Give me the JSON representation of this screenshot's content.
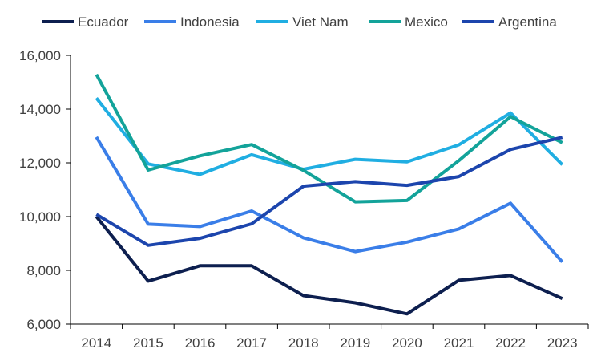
{
  "chart_data": {
    "type": "line",
    "title": "",
    "xlabel": "",
    "ylabel": "",
    "x": [
      "2014",
      "2015",
      "2016",
      "2017",
      "2018",
      "2019",
      "2020",
      "2021",
      "2022",
      "2023"
    ],
    "ylim": [
      6000,
      16000
    ],
    "yticks": [
      6000,
      8000,
      10000,
      12000,
      14000,
      16000
    ],
    "ytick_labels": [
      "6,000",
      "8,000",
      "10,000",
      "12,000",
      "14,000",
      "16,000"
    ],
    "grid": false,
    "legend_position": "top",
    "series": [
      {
        "name": "Ecuador",
        "color": "#0d1f4f",
        "values": [
          10000,
          7600,
          8170,
          8170,
          7060,
          6790,
          6380,
          7630,
          7810,
          6950
        ]
      },
      {
        "name": "Indonesia",
        "color": "#3a7ee8",
        "values": [
          12960,
          9720,
          9630,
          10210,
          9210,
          8700,
          9050,
          9540,
          10500,
          8310
        ]
      },
      {
        "name": "Viet Nam",
        "color": "#20aee2",
        "values": [
          14410,
          11960,
          11570,
          12300,
          11760,
          12130,
          12040,
          12670,
          13860,
          11930
        ]
      },
      {
        "name": "Mexico",
        "color": "#13a39a",
        "values": [
          15290,
          11730,
          12260,
          12680,
          11720,
          10550,
          10600,
          12080,
          13720,
          12750
        ]
      },
      {
        "name": "Argentina",
        "color": "#1c45ad",
        "values": [
          10080,
          8930,
          9190,
          9730,
          11130,
          11300,
          11160,
          11490,
          12500,
          12950
        ]
      }
    ]
  }
}
